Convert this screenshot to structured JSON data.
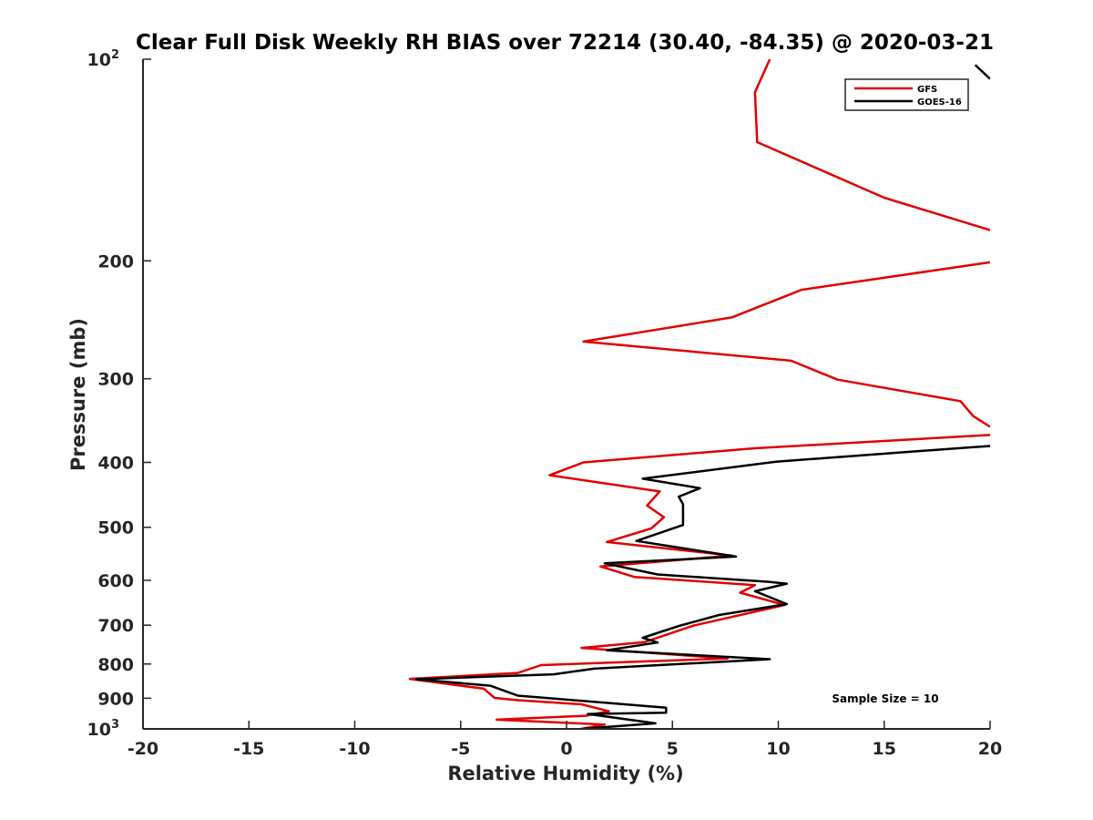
{
  "chart_data": {
    "type": "line",
    "title": "Clear Full Disk Weekly RH BIAS over 72214 (30.40, -84.35) @ 2020-03-21",
    "xlabel": "Relative Humidity (%)",
    "ylabel": "Pressure (mb)",
    "xlim": [
      -20,
      20
    ],
    "ylim": [
      100,
      1000
    ],
    "yscale": "log",
    "y_reversed": true,
    "x_ticks": [
      "-20",
      "-15",
      "-10",
      "-5",
      "0",
      "5",
      "10",
      "15",
      "20"
    ],
    "y_ticks": [
      {
        "value": 100,
        "base": "10",
        "exp": "2"
      },
      {
        "value": 200,
        "label": "200"
      },
      {
        "value": 300,
        "label": "300"
      },
      {
        "value": 400,
        "label": "400"
      },
      {
        "value": 500,
        "label": "500"
      },
      {
        "value": 600,
        "label": "600"
      },
      {
        "value": 700,
        "label": "700"
      },
      {
        "value": 800,
        "label": "800"
      },
      {
        "value": 900,
        "label": "900"
      },
      {
        "value": 1000,
        "base": "10",
        "exp": "3"
      }
    ],
    "legend_location": "top-right",
    "annotation": "Sample Size = 10",
    "series": [
      {
        "name": "GFS",
        "color": "#e00000",
        "points": [
          [
            9.6,
            100
          ],
          [
            8.9,
            112
          ],
          [
            9.0,
            133
          ],
          [
            15.0,
            161
          ],
          [
            20.0,
            180
          ],
          [
            null,
            null
          ],
          [
            20.0,
            201
          ],
          [
            11.1,
            221
          ],
          [
            7.8,
            243
          ],
          [
            0.8,
            264
          ],
          [
            10.6,
            282
          ],
          [
            12.8,
            301
          ],
          [
            18.6,
            324
          ],
          [
            19.2,
            341
          ],
          [
            20.0,
            354
          ],
          [
            null,
            null
          ],
          [
            20.0,
            364
          ],
          [
            8.9,
            381
          ],
          [
            0.8,
            400
          ],
          [
            -0.8,
            418
          ],
          [
            4.4,
            442
          ],
          [
            3.8,
            464
          ],
          [
            4.6,
            483
          ],
          [
            4.0,
            502
          ],
          [
            1.9,
            526
          ],
          [
            7.8,
            551
          ],
          [
            1.6,
            572
          ],
          [
            3.2,
            593
          ],
          [
            8.9,
            610
          ],
          [
            8.2,
            626
          ],
          [
            10.3,
            653
          ],
          [
            6.0,
            701
          ],
          [
            3.7,
            742
          ],
          [
            0.7,
            757
          ],
          [
            7.6,
            785
          ],
          [
            -1.2,
            803
          ],
          [
            -2.3,
            825
          ],
          [
            -7.4,
            842
          ],
          [
            -3.9,
            871
          ],
          [
            -3.4,
            899
          ],
          [
            -2.3,
            906
          ],
          [
            0.7,
            919
          ],
          [
            2.0,
            941
          ],
          [
            0.9,
            956
          ],
          [
            -3.3,
            969
          ],
          [
            1.8,
            985
          ],
          [
            0.7,
            1000
          ]
        ]
      },
      {
        "name": "GOES-16",
        "color": "#000000",
        "points": [
          [
            19.3,
            102
          ],
          [
            20.0,
            107
          ],
          [
            null,
            null
          ],
          [
            20.0,
            378
          ],
          [
            19.0,
            380
          ],
          [
            9.9,
            399
          ],
          [
            3.6,
            423
          ],
          [
            6.3,
            437
          ],
          [
            5.3,
            450
          ],
          [
            5.5,
            462
          ],
          [
            5.5,
            496
          ],
          [
            3.3,
            524
          ],
          [
            8.0,
            553
          ],
          [
            1.8,
            566
          ],
          [
            4.3,
            588
          ],
          [
            9.5,
            603
          ],
          [
            10.4,
            607
          ],
          [
            8.9,
            623
          ],
          [
            10.4,
            651
          ],
          [
            7.2,
            676
          ],
          [
            5.3,
            702
          ],
          [
            3.6,
            731
          ],
          [
            4.3,
            743
          ],
          [
            1.9,
            763
          ],
          [
            9.6,
            787
          ],
          [
            1.3,
            813
          ],
          [
            -0.6,
            829
          ],
          [
            -7.1,
            843
          ],
          [
            -3.6,
            862
          ],
          [
            -2.3,
            892
          ],
          [
            4.7,
            930
          ],
          [
            4.7,
            946
          ],
          [
            1.0,
            950
          ],
          [
            4.2,
            981
          ],
          [
            0.7,
            1000
          ]
        ]
      }
    ]
  }
}
